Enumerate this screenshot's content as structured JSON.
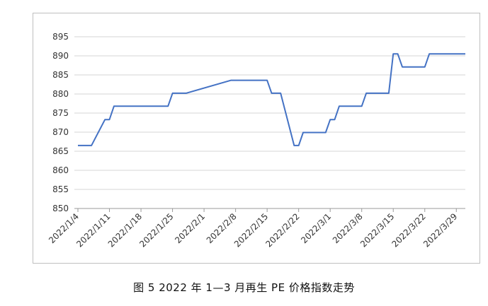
{
  "caption": "图 5  2022 年 1—3 月再生 PE 价格指数走势",
  "chart_data": {
    "type": "line",
    "title": "",
    "xlabel": "",
    "ylabel": "",
    "ylim": [
      850,
      895
    ],
    "yticks": [
      850,
      855,
      860,
      865,
      870,
      875,
      880,
      885,
      890,
      895
    ],
    "xticks": [
      "2022/1/4",
      "2022/1/11",
      "2022/1/18",
      "2022/1/25",
      "2022/2/1",
      "2022/2/8",
      "2022/2/15",
      "2022/2/22",
      "2022/3/1",
      "2022/3/8",
      "2022/3/15",
      "2022/3/22",
      "2022/3/29"
    ],
    "grid": true,
    "line_color": "#4472c4",
    "series": [
      {
        "name": "",
        "x": [
          "2022/1/4",
          "2022/1/5",
          "2022/1/6",
          "2022/1/7",
          "2022/1/10",
          "2022/1/11",
          "2022/1/12",
          "2022/1/13",
          "2022/1/14",
          "2022/1/17",
          "2022/1/18",
          "2022/1/19",
          "2022/1/20",
          "2022/1/21",
          "2022/1/24",
          "2022/1/25",
          "2022/1/26",
          "2022/1/27",
          "2022/1/28",
          "2022/2/7",
          "2022/2/8",
          "2022/2/9",
          "2022/2/10",
          "2022/2/11",
          "2022/2/14",
          "2022/2/15",
          "2022/2/16",
          "2022/2/17",
          "2022/2/18",
          "2022/2/21",
          "2022/2/22",
          "2022/2/23",
          "2022/2/24",
          "2022/2/25",
          "2022/2/28",
          "2022/3/1",
          "2022/3/2",
          "2022/3/3",
          "2022/3/4",
          "2022/3/7",
          "2022/3/8",
          "2022/3/9",
          "2022/3/10",
          "2022/3/11",
          "2022/3/14",
          "2022/3/15",
          "2022/3/16",
          "2022/3/17",
          "2022/3/18",
          "2022/3/21",
          "2022/3/22",
          "2022/3/23",
          "2022/3/24",
          "2022/3/25",
          "2022/3/28",
          "2022/3/29",
          "2022/3/30",
          "2022/3/31"
        ],
        "values": [
          866.5,
          866.5,
          866.5,
          866.5,
          873.3,
          873.3,
          876.8,
          876.8,
          876.8,
          876.8,
          876.8,
          876.8,
          876.8,
          876.8,
          876.8,
          880.2,
          880.2,
          880.2,
          880.2,
          883.6,
          883.6,
          883.6,
          883.6,
          883.6,
          883.6,
          883.6,
          880.2,
          880.2,
          880.2,
          866.5,
          866.5,
          869.9,
          869.9,
          869.9,
          869.9,
          873.3,
          873.3,
          876.8,
          876.8,
          876.8,
          876.8,
          880.2,
          880.2,
          880.2,
          880.2,
          890.5,
          890.5,
          887.1,
          887.1,
          887.1,
          887.1,
          890.5,
          890.5,
          890.5,
          890.5,
          890.5,
          890.5,
          890.5
        ]
      }
    ]
  }
}
